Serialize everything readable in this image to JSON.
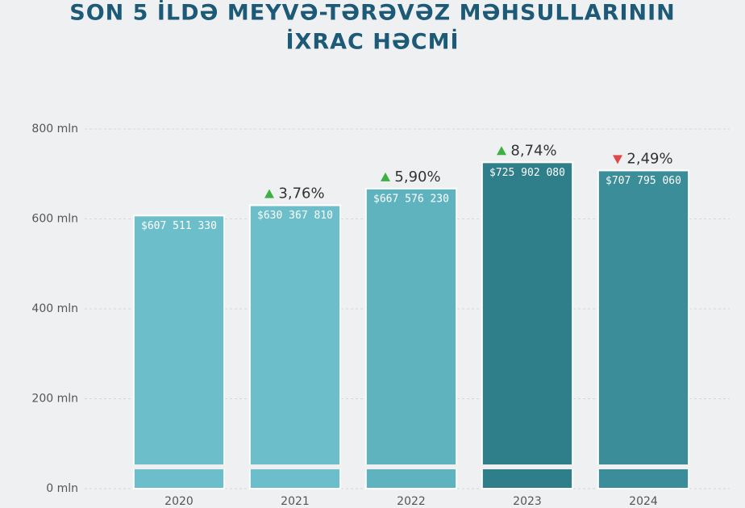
{
  "chart_data": {
    "type": "bar",
    "title": [
      "SON 5 İLDƏ MEYVƏ-TƏRƏVƏZ MƏHSULLARININ",
      "İXRAC HƏCMİ"
    ],
    "categories": [
      "2020",
      "2021",
      "2022",
      "2023",
      "2024"
    ],
    "values": [
      607511330,
      630367810,
      667576230,
      725902080,
      707795060
    ],
    "value_labels": [
      "$607 511 330",
      "$630 367 810",
      "$667 576 230",
      "$725 902 080",
      "$707 795 060"
    ],
    "colors": [
      "#6cbfca",
      "#6cbfca",
      "#5fb3bf",
      "#2f7f8b",
      "#3a8d99"
    ],
    "changes": [
      null,
      {
        "label": "3,76%",
        "direction": "up"
      },
      {
        "label": "5,90%",
        "direction": "up"
      },
      {
        "label": "8,74%",
        "direction": "up"
      },
      {
        "label": "2,49%",
        "direction": "down"
      }
    ],
    "up_color": "#3cb043",
    "down_color": "#e04848",
    "ylim": [
      0,
      800000000
    ],
    "yticks": [
      {
        "value": 0,
        "label": "0 mln"
      },
      {
        "value": 200000000,
        "label": "200 mln"
      },
      {
        "value": 400000000,
        "label": "400 mln"
      },
      {
        "value": 600000000,
        "label": "600 mln"
      },
      {
        "value": 800000000,
        "label": "800 mln"
      }
    ],
    "grid": true
  }
}
